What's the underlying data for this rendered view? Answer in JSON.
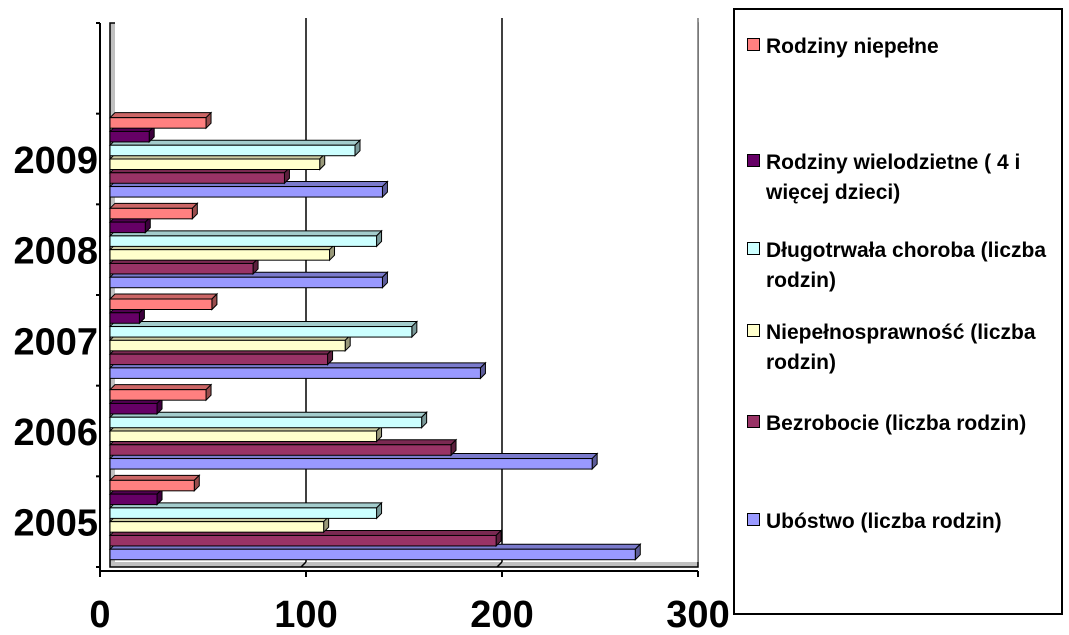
{
  "chart_data": {
    "type": "bar",
    "orientation": "horizontal",
    "categories": [
      "2005",
      "2006",
      "2007",
      "2008",
      "2009"
    ],
    "series": [
      {
        "name": "Ubóstwo (liczba rodzin)",
        "color": "#9999ff",
        "values": [
          268,
          246,
          189,
          139,
          139
        ]
      },
      {
        "name": "Bezrobocie (liczba rodzin)",
        "color": "#993366",
        "values": [
          197,
          174,
          111,
          73,
          89
        ]
      },
      {
        "name": "Niepełnosprawność (liczba rodzin)",
        "color": "#ffffcc",
        "values": [
          109,
          136,
          120,
          112,
          107
        ]
      },
      {
        "name": "Długotrwała choroba (liczba rodzin)",
        "color": "#ccffff",
        "values": [
          136,
          159,
          154,
          136,
          125
        ]
      },
      {
        "name": "Rodziny wielodzietne ( 4 i więcej dzieci)",
        "color": "#660066",
        "values": [
          24,
          24,
          15,
          18,
          20
        ]
      },
      {
        "name": "Rodziny niepełne",
        "color": "#ff8080",
        "values": [
          43,
          49,
          52,
          42,
          49
        ]
      }
    ],
    "xticks": [
      "0",
      "100",
      "200",
      "300"
    ],
    "xlim": [
      0,
      300
    ],
    "empty_category_slot_above": true,
    "grid": "vertical major gridlines",
    "legend": "right",
    "title": "",
    "xlabel": "",
    "ylabel": ""
  }
}
